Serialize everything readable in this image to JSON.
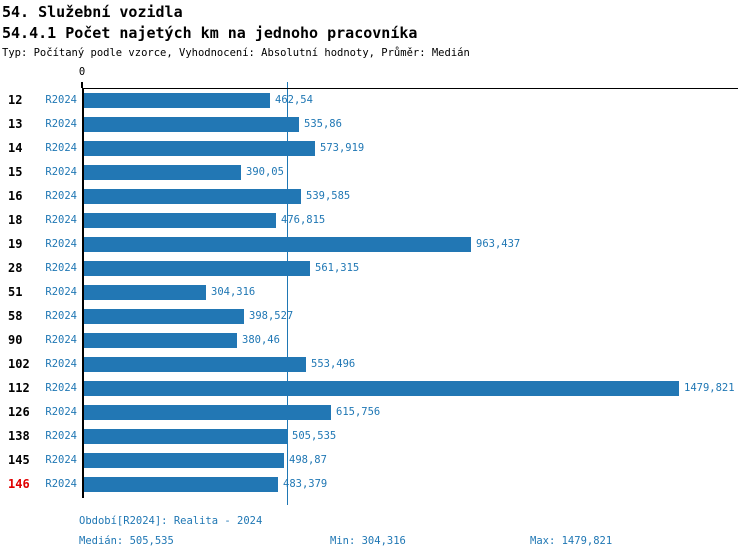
{
  "header": {
    "title_line1": "54. Služební vozidla",
    "title_line2": "54.4.1 Počet najetých km na jednoho pracovníka",
    "subtitle": "Typ: Počítaný podle vzorce, Vyhodnocení: Absolutní hodnoty, Průměr: Medián"
  },
  "chart_data": {
    "type": "bar",
    "orientation": "horizontal",
    "title": "54.4.1 Počet najetých km na jednoho pracovníka",
    "axis_zero_label": "0",
    "xlim": [
      0,
      1625
    ],
    "grid": false,
    "row_series_label": "R2024",
    "categories": [
      "12",
      "13",
      "14",
      "15",
      "16",
      "18",
      "19",
      "28",
      "51",
      "58",
      "90",
      "102",
      "112",
      "126",
      "138",
      "145",
      "146"
    ],
    "values": [
      462.54,
      535.86,
      573.919,
      390.05,
      539.585,
      476.815,
      963.437,
      561.315,
      304.316,
      398.527,
      380.46,
      553.496,
      1479.821,
      615.756,
      505.535,
      498.87,
      483.379
    ],
    "value_labels": [
      "462,54",
      "535,86",
      "573,919",
      "390,05",
      "539,585",
      "476,815",
      "963,437",
      "561,315",
      "304,316",
      "398,527",
      "380,46",
      "553,496",
      "1479,821",
      "615,756",
      "505,535",
      "498,87",
      "483,379"
    ],
    "highlighted_category": "146",
    "median_line": 505.535,
    "stats": {
      "median": "505,535",
      "min": "304,316",
      "max": "1479,821"
    }
  },
  "footer": {
    "period_label": "Období[R2024]: Realita - 2024",
    "median_label": "Medián: 505,535",
    "min_label": "Min: 304,316",
    "max_label": "Max: 1479,821"
  },
  "colors": {
    "bar": "#2277b4",
    "accent_text": "#1f77b4",
    "highlight": "#e00000",
    "ink": "#000000",
    "background": "#ffffff"
  }
}
